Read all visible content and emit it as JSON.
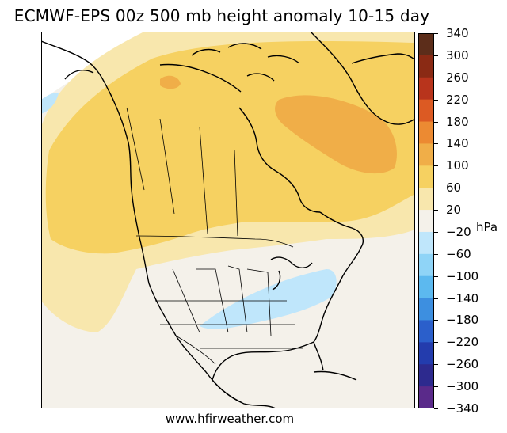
{
  "title": "ECMWF-EPS 00z 500 mb height anomaly 10-15 day",
  "credit": "www.hfirweather.com",
  "colorbar": {
    "unit": "hPa",
    "ticks": [
      "340",
      "300",
      "260",
      "220",
      "180",
      "140",
      "100",
      "60",
      "20",
      "−20",
      "−60",
      "−100",
      "−140",
      "−180",
      "−220",
      "−260",
      "−300",
      "−340"
    ],
    "levels": [
      {
        "range": "300 to 340",
        "color": "#5c2d1a"
      },
      {
        "range": "260 to 300",
        "color": "#8a2a14"
      },
      {
        "range": "220 to 260",
        "color": "#b8341c"
      },
      {
        "range": "180 to 220",
        "color": "#dc5a23"
      },
      {
        "range": "140 to 180",
        "color": "#ec8a32"
      },
      {
        "range": "100 to 140",
        "color": "#f0ae48"
      },
      {
        "range": "60 to 100",
        "color": "#f6d161"
      },
      {
        "range": "20 to 60",
        "color": "#f8e7ad"
      },
      {
        "range": "-20 to 20",
        "color": "#f4f1ea"
      },
      {
        "range": "-60 to -20",
        "color": "#bfe6fb"
      },
      {
        "range": "-100 to -60",
        "color": "#8fd4f7"
      },
      {
        "range": "-140 to -100",
        "color": "#5cb9ef"
      },
      {
        "range": "-180 to -140",
        "color": "#3d8fe0"
      },
      {
        "range": "-220 to -180",
        "color": "#2b5fcb"
      },
      {
        "range": "-260 to -220",
        "color": "#233cad"
      },
      {
        "range": "-300 to -260",
        "color": "#2d2a8e"
      },
      {
        "range": "-340 to -300",
        "color": "#5a2a8a"
      }
    ]
  }
}
